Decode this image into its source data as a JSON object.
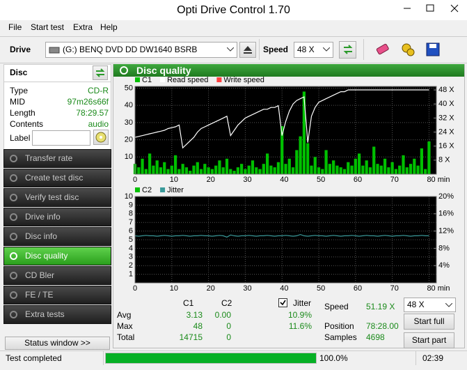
{
  "window": {
    "title": "Opti Drive Control 1.70"
  },
  "menu": [
    "File",
    "Start test",
    "Extra",
    "Help"
  ],
  "toolbar": {
    "drive_label": "Drive",
    "drive": "(G:)  BENQ DVD DD DW1640 BSRB",
    "speed_label": "Speed",
    "speed": "48 X"
  },
  "disc": {
    "title": "Disc",
    "rows": [
      [
        "Type",
        "CD-R"
      ],
      [
        "MID",
        "97m26s66f"
      ],
      [
        "Length",
        "78:29.57"
      ],
      [
        "Contents",
        "audio"
      ]
    ],
    "label": "Label"
  },
  "nav": [
    "Transfer rate",
    "Create test disc",
    "Verify test disc",
    "Drive info",
    "Disc info",
    "Disc quality",
    "CD Bler",
    "FE / TE",
    "Extra tests"
  ],
  "active_nav": 5,
  "status_window": "Status window >>",
  "panel_title": "Disc quality",
  "chart_data": [
    {
      "type": "combo",
      "grid": true,
      "x": [
        0,
        1,
        2,
        3,
        4,
        5,
        6,
        7,
        8,
        9,
        10,
        11,
        12,
        13,
        14,
        15,
        16,
        17,
        18,
        19,
        20,
        21,
        22,
        23,
        24,
        25,
        26,
        27,
        28,
        29,
        30,
        31,
        32,
        33,
        34,
        35,
        36,
        37,
        38,
        39,
        40,
        41,
        42,
        43,
        44,
        45,
        46,
        47,
        48,
        49,
        50,
        51,
        52,
        53,
        54,
        55,
        56,
        57,
        58,
        59,
        60,
        61,
        62,
        63,
        64,
        65,
        66,
        67,
        68,
        69,
        70,
        71,
        72,
        73,
        74,
        75,
        76,
        77,
        78,
        79,
        80
      ],
      "xlim": [
        0,
        82
      ],
      "xticks": [
        0,
        10,
        20,
        30,
        40,
        50,
        60,
        70,
        {
          "value": 80,
          "label": "80 min"
        }
      ],
      "ylim": [
        0,
        51
      ],
      "yticks": [
        10,
        20,
        30,
        40,
        50
      ],
      "y2lim": [
        0,
        50
      ],
      "y2ticks": [
        {
          "value": 8,
          "label": "8 X"
        },
        {
          "value": 16,
          "label": "16 X"
        },
        {
          "value": 24,
          "label": "24 X"
        },
        {
          "value": 32,
          "label": "32 X"
        },
        {
          "value": 40,
          "label": "40 X"
        },
        {
          "value": 48,
          "label": "48 X"
        }
      ],
      "series": [
        {
          "name": "C1",
          "type": "bar",
          "color": "#00c000",
          "values": [
            6,
            4,
            9,
            3,
            12,
            5,
            8,
            4,
            7,
            3,
            5,
            11,
            3,
            6,
            4,
            2,
            5,
            7,
            3,
            6,
            4,
            3,
            5,
            8,
            4,
            9,
            3,
            2,
            4,
            6,
            3,
            5,
            8,
            4,
            3,
            6,
            12,
            5,
            4,
            7,
            28,
            6,
            9,
            4,
            14,
            22,
            48,
            18,
            5,
            10,
            4,
            3,
            14,
            6,
            8,
            5,
            4,
            3,
            7,
            5,
            9,
            12,
            5,
            8,
            4,
            16,
            6,
            5,
            9,
            4,
            7,
            3,
            5,
            11,
            4,
            6,
            9,
            5,
            15,
            3,
            19
          ]
        },
        {
          "name": "Read speed",
          "type": "line",
          "axis": "y2",
          "color": "#ffffff",
          "values": [
            21,
            21.5,
            22,
            22.5,
            23,
            23.5,
            24,
            24.5,
            25,
            26,
            26.5,
            27,
            28,
            15,
            17,
            19,
            21,
            24,
            26,
            27,
            28,
            29,
            30,
            31,
            32,
            33,
            22,
            25,
            28,
            30,
            32,
            33,
            34,
            35,
            36,
            37,
            37,
            38,
            38,
            39,
            22,
            30,
            36,
            40,
            42,
            43,
            44,
            18,
            33,
            38,
            41,
            42,
            43,
            44,
            45,
            46,
            47,
            47,
            48,
            48,
            48,
            48,
            48,
            48,
            48,
            48,
            48,
            48,
            48,
            48,
            48,
            48,
            48,
            48,
            48,
            48,
            48,
            48,
            48,
            48,
            48
          ]
        },
        {
          "name": "Write speed",
          "type": "line",
          "axis": "y2",
          "color": "#ff4040",
          "values": [
            null,
            null,
            null,
            null,
            null,
            null,
            null,
            null,
            null,
            null,
            null,
            null,
            null,
            null,
            null,
            null,
            null,
            null,
            null,
            null,
            null,
            null,
            null,
            null,
            null,
            null,
            null,
            null,
            null,
            null,
            null,
            null,
            null,
            null,
            null,
            null,
            null,
            null,
            null,
            null,
            null,
            null,
            null,
            null,
            null,
            null,
            null,
            null,
            null,
            null,
            null,
            null,
            null,
            null,
            null,
            null,
            null,
            null,
            null,
            null,
            null,
            null,
            null,
            null,
            null,
            null,
            null,
            null,
            null,
            null,
            null,
            null,
            null,
            null,
            null,
            null,
            null,
            null,
            null,
            null,
            null
          ]
        }
      ]
    },
    {
      "type": "combo",
      "grid": true,
      "x": [
        0,
        1,
        2,
        3,
        4,
        5,
        6,
        7,
        8,
        9,
        10,
        11,
        12,
        13,
        14,
        15,
        16,
        17,
        18,
        19,
        20,
        21,
        22,
        23,
        24,
        25,
        26,
        27,
        28,
        29,
        30,
        31,
        32,
        33,
        34,
        35,
        36,
        37,
        38,
        39,
        40,
        41,
        42,
        43,
        44,
        45,
        46,
        47,
        48,
        49,
        50,
        51,
        52,
        53,
        54,
        55,
        56,
        57,
        58,
        59,
        60,
        61,
        62,
        63,
        64,
        65,
        66,
        67,
        68,
        69,
        70,
        71,
        72,
        73,
        74,
        75,
        76,
        77,
        78,
        79,
        80
      ],
      "xlim": [
        0,
        82
      ],
      "xticks": [
        0,
        10,
        20,
        30,
        40,
        50,
        60,
        70,
        {
          "value": 80,
          "label": "80 min"
        }
      ],
      "ylim": [
        0,
        10
      ],
      "yticks": [
        1,
        2,
        3,
        4,
        5,
        6,
        7,
        8,
        9,
        10
      ],
      "y2lim": [
        0,
        20
      ],
      "y2ticks": [
        {
          "value": 4,
          "label": "4%"
        },
        {
          "value": 8,
          "label": "8%"
        },
        {
          "value": 12,
          "label": "12%"
        },
        {
          "value": 16,
          "label": "16%"
        },
        {
          "value": 20,
          "label": "20%"
        }
      ],
      "series": [
        {
          "name": "C2",
          "type": "bar",
          "color": "#00c000",
          "values": [
            0,
            0,
            0,
            0,
            0,
            0,
            0,
            0,
            0,
            0,
            0,
            0,
            0,
            0,
            0,
            0,
            0,
            0,
            0,
            0,
            0,
            0,
            0,
            0,
            0,
            0,
            0,
            0,
            0,
            0,
            0,
            0,
            0,
            0,
            0,
            0,
            0,
            0,
            0,
            0,
            0,
            0,
            0,
            0,
            0,
            0,
            0,
            0,
            0,
            0,
            0,
            0,
            0,
            0,
            0,
            0,
            0,
            0,
            0,
            0,
            0,
            0,
            0,
            0,
            0,
            0,
            0,
            0,
            0,
            0,
            0,
            0,
            0,
            0,
            0,
            0,
            0,
            0,
            0,
            0,
            0
          ]
        },
        {
          "name": "Jitter",
          "type": "line",
          "axis": "y2",
          "color": "#3a9a9a",
          "values": [
            10.9,
            10.8,
            10.9,
            11.0,
            10.9,
            10.9,
            10.8,
            10.9,
            11.0,
            10.9,
            10.8,
            10.9,
            10.9,
            11.0,
            10.9,
            10.8,
            10.9,
            10.9,
            11.0,
            10.9,
            10.9,
            10.8,
            10.9,
            11.0,
            10.9,
            10.6,
            11.1,
            10.9,
            10.8,
            10.9,
            10.9,
            11.0,
            10.9,
            10.8,
            10.9,
            10.9,
            11.0,
            10.9,
            10.8,
            10.9,
            10.9,
            11.0,
            10.9,
            10.8,
            10.9,
            11.2,
            10.9,
            10.8,
            10.9,
            11.0,
            10.9,
            10.9,
            10.8,
            10.9,
            11.0,
            10.9,
            10.8,
            10.9,
            10.9,
            11.0,
            10.9,
            10.8,
            10.9,
            11.0,
            10.9,
            10.9,
            10.8,
            10.9,
            11.0,
            10.9,
            10.8,
            10.9,
            10.9,
            11.0,
            10.9,
            10.8,
            10.9,
            10.9,
            11.0,
            10.9,
            10.9
          ]
        }
      ]
    }
  ],
  "stats": {
    "headers": [
      "C1",
      "C2",
      "Jitter"
    ],
    "rows": [
      {
        "label": "Avg",
        "values": [
          "3.13",
          "0.00",
          "10.9%"
        ]
      },
      {
        "label": "Max",
        "values": [
          "48",
          "0",
          "11.6%"
        ]
      },
      {
        "label": "Total",
        "values": [
          "14715",
          "0"
        ]
      }
    ],
    "speed_label": "Speed",
    "speed": "51.19 X",
    "position_label": "Position",
    "position": "78:28.00",
    "samples_label": "Samples",
    "samples": "4698",
    "speed_select": "48 X",
    "start_full": "Start full",
    "start_part": "Start part"
  },
  "status": {
    "text": "Test completed",
    "progress": 100,
    "progress_label": "100.0%",
    "time": "02:39"
  }
}
